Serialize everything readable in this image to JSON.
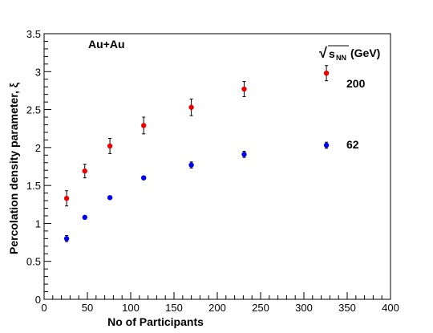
{
  "chart_data": {
    "type": "scatter",
    "xlabel": "No of Participants",
    "ylabel": "Percolation density parameter, ξ",
    "annotation": "Au+Au",
    "legend_header": {
      "sqrt": "√",
      "s": "s",
      "sub": "NN",
      "unit": "(GeV)"
    },
    "xlim": [
      0,
      400
    ],
    "ylim": [
      0,
      3.5
    ],
    "x_ticks": [
      0,
      50,
      100,
      150,
      200,
      250,
      300,
      350,
      400
    ],
    "y_ticks": [
      0,
      0.5,
      1,
      1.5,
      2,
      2.5,
      3,
      3.5
    ],
    "x_tick_labels": [
      "0",
      "50",
      "100",
      "150",
      "200",
      "250",
      "300",
      "350",
      "400"
    ],
    "y_tick_labels": [
      "0",
      "0.5",
      "1",
      "1.5",
      "2",
      "2.5",
      "3",
      "3.5"
    ],
    "series": [
      {
        "name": "200",
        "color": "#ee0000",
        "x": [
          26,
          47,
          76,
          115,
          170,
          231,
          326
        ],
        "y": [
          1.33,
          1.69,
          2.02,
          2.29,
          2.53,
          2.77,
          2.98
        ],
        "err": [
          0.1,
          0.09,
          0.1,
          0.11,
          0.11,
          0.1,
          0.1
        ]
      },
      {
        "name": "62",
        "color": "#0000ee",
        "x": [
          26,
          47,
          76,
          115,
          170,
          231,
          326
        ],
        "y": [
          0.8,
          1.08,
          1.34,
          1.6,
          1.77,
          1.91,
          2.03
        ],
        "err": [
          0.04,
          0.02,
          0.02,
          0.02,
          0.04,
          0.04,
          0.04
        ]
      }
    ]
  }
}
